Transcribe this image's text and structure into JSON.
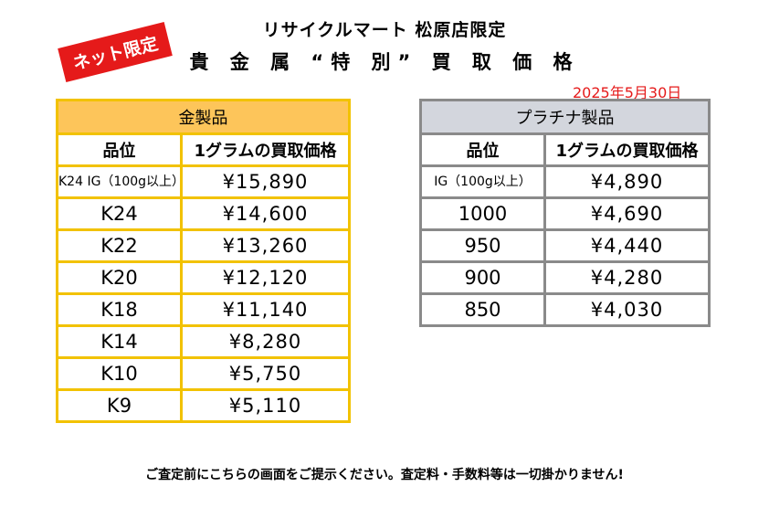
{
  "badge": "ネット限定",
  "header": {
    "store": "リサイクルマート 松原店限定",
    "title": "貴 金 属 “特 別” 買 取 価 格",
    "date": "2025年5月30日"
  },
  "gold_table": {
    "title": "金製品",
    "col_grade": "品位",
    "col_price": "1グラムの買取価格",
    "rows": [
      {
        "grade": "K24 IG（100g以上）",
        "price": "¥15,890"
      },
      {
        "grade": "K24",
        "price": "¥14,600"
      },
      {
        "grade": "K22",
        "price": "¥13,260"
      },
      {
        "grade": "K20",
        "price": "¥12,120"
      },
      {
        "grade": "K18",
        "price": "¥11,140"
      },
      {
        "grade": "K14",
        "price": "¥8,280"
      },
      {
        "grade": "K10",
        "price": "¥5,750"
      },
      {
        "grade": "K9",
        "price": "¥5,110"
      }
    ]
  },
  "platinum_table": {
    "title": "プラチナ製品",
    "col_grade": "品位",
    "col_price": "1グラムの買取価格",
    "rows": [
      {
        "grade": "IG（100g以上）",
        "price": "¥4,890"
      },
      {
        "grade": "1000",
        "price": "¥4,690"
      },
      {
        "grade": "950",
        "price": "¥4,440"
      },
      {
        "grade": "900",
        "price": "¥4,280"
      },
      {
        "grade": "850",
        "price": "¥4,030"
      }
    ]
  },
  "footer": "ご査定前にこちらの画面をご提示ください。査定料・手数料等は一切掛かりません!",
  "colors": {
    "accent_red": "#d9151b",
    "gold_header": "#fdc55a",
    "gold_border": "#f2c200",
    "platinum_header": "#d3d6dd",
    "platinum_border": "#8a8a8a"
  }
}
